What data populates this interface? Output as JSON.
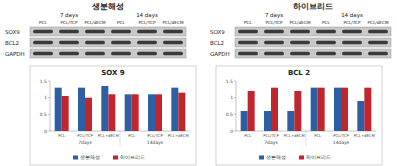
{
  "panels": [
    {
      "title": "생분해성",
      "times": [
        "7 days",
        "14 days"
      ],
      "columns": [
        "PCL",
        "PCL/TCP",
        "PCL/dECM"
      ],
      "rows": [
        "SOX9",
        "BCL2",
        "GAPDH"
      ]
    },
    {
      "title": "하이브리드",
      "times": [
        "7 days",
        "14 days"
      ],
      "columns": [
        "PCL",
        "PCL/TCP",
        "PCL/dECM"
      ],
      "rows": [
        "SOX9",
        "BCL2",
        "GAPDH"
      ]
    }
  ],
  "chart_data": [
    {
      "type": "bar",
      "title": "SOX 9",
      "categories": [
        "PCL",
        "PCL/TCP",
        "PCL+dECM",
        "PCL",
        "PCL/TCP",
        "PCL+dECM"
      ],
      "category_groups": [
        "7days",
        "7days",
        "7days",
        "14days",
        "14days",
        "14days"
      ],
      "series": [
        {
          "name": "생분해성",
          "color": "#2e5fa3",
          "values": [
            1.3,
            1.3,
            1.35,
            1.1,
            1.1,
            1.3
          ]
        },
        {
          "name": "하이브리드",
          "color": "#c0262d",
          "values": [
            1.05,
            1.0,
            1.1,
            1.1,
            1.1,
            1.15
          ]
        }
      ],
      "ylim": [
        0,
        1.5
      ],
      "yticks": [
        0,
        0.5,
        1,
        1.5
      ],
      "grid": false,
      "legend": "bottom"
    },
    {
      "type": "bar",
      "title": "BCL 2",
      "categories": [
        "PCL",
        "PCL/TCP",
        "PCL+dECM",
        "PCL",
        "PCL/TCP",
        "PCL+dECM"
      ],
      "category_groups": [
        "7days",
        "7days",
        "7days",
        "14days",
        "14days",
        "14days"
      ],
      "series": [
        {
          "name": "생분해성",
          "color": "#2e5fa3",
          "values": [
            0.6,
            0.6,
            0.6,
            1.3,
            1.3,
            0.9
          ]
        },
        {
          "name": "하이브리드",
          "color": "#c0262d",
          "values": [
            1.2,
            1.3,
            1.2,
            1.3,
            1.3,
            1.3
          ]
        }
      ],
      "ylim": [
        0,
        1.5
      ],
      "yticks": [
        0,
        0.5,
        1,
        1.5
      ],
      "grid": false,
      "legend": "bottom"
    }
  ]
}
